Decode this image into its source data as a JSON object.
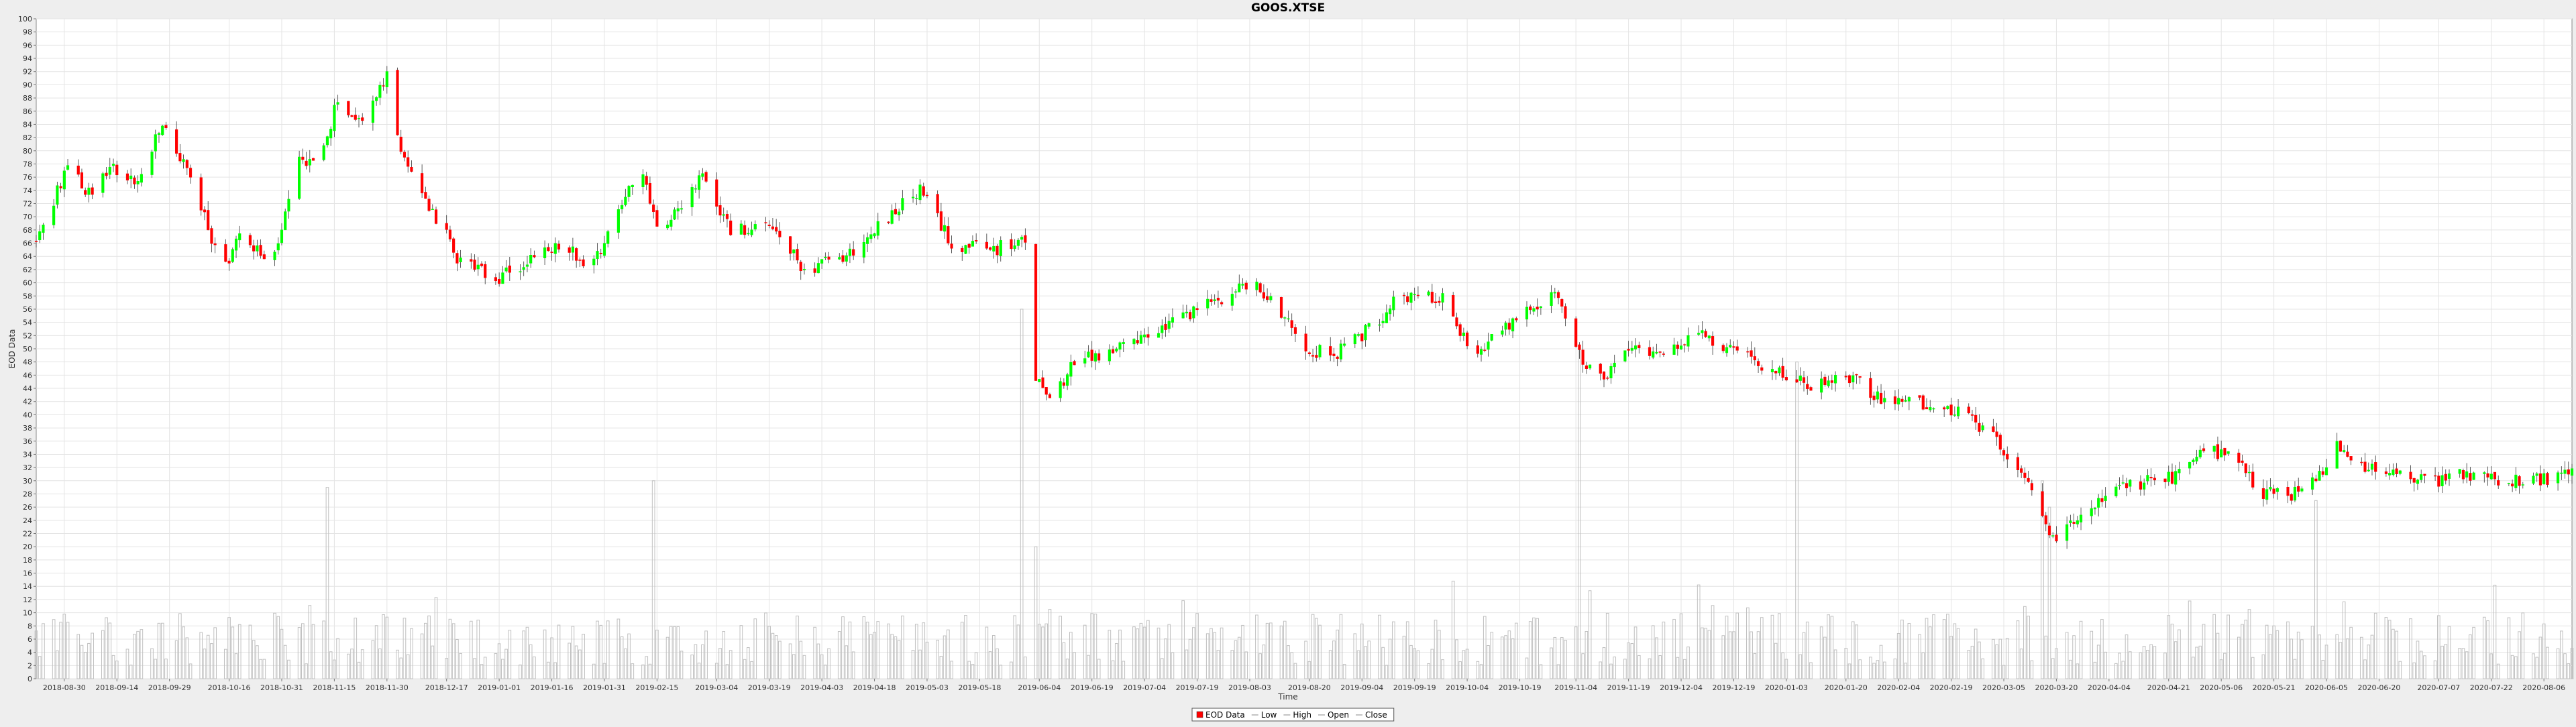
{
  "chart_data": {
    "type": "candlestick",
    "title": "GOOS.XTSE",
    "xlabel": "Time",
    "ylabel": "EOD Data",
    "ylim": [
      0,
      100
    ],
    "y_ticks": [
      0,
      2,
      4,
      6,
      8,
      10,
      12,
      14,
      16,
      18,
      20,
      22,
      24,
      26,
      28,
      30,
      32,
      34,
      36,
      38,
      40,
      42,
      44,
      46,
      48,
      50,
      52,
      54,
      56,
      58,
      60,
      62,
      64,
      66,
      68,
      70,
      72,
      74,
      76,
      78,
      80,
      82,
      84,
      86,
      88,
      90,
      92,
      94,
      96,
      98,
      100
    ],
    "x_range": [
      "2018-08-22",
      "2020-08-14"
    ],
    "x_ticks": [
      "2018-08-30",
      "2018-09-14",
      "2018-09-29",
      "2018-10-16",
      "2018-10-31",
      "2018-11-15",
      "2018-11-30",
      "2018-12-17",
      "2019-01-01",
      "2019-01-16",
      "2019-01-31",
      "2019-02-15",
      "2019-03-04",
      "2019-03-19",
      "2019-04-03",
      "2019-04-18",
      "2019-05-03",
      "2019-05-18",
      "2019-06-04",
      "2019-06-19",
      "2019-07-04",
      "2019-07-19",
      "2019-08-03",
      "2019-08-20",
      "2019-09-04",
      "2019-09-19",
      "2019-10-04",
      "2019-10-19",
      "2019-11-04",
      "2019-11-19",
      "2019-12-04",
      "2019-12-19",
      "2020-01-03",
      "2020-01-20",
      "2020-02-04",
      "2020-02-19",
      "2020-03-05",
      "2020-03-20",
      "2020-04-04",
      "2020-04-21",
      "2020-05-06",
      "2020-05-21",
      "2020-06-05",
      "2020-06-20",
      "2020-07-07",
      "2020-07-22",
      "2020-08-06"
    ],
    "price_anchors": [
      [
        "2018-08-22",
        66
      ],
      [
        "2018-09-01",
        79
      ],
      [
        "2018-09-05",
        73
      ],
      [
        "2018-09-12",
        78
      ],
      [
        "2018-09-20",
        75
      ],
      [
        "2018-09-27",
        84
      ],
      [
        "2018-10-05",
        76
      ],
      [
        "2018-10-14",
        62
      ],
      [
        "2018-10-20",
        68
      ],
      [
        "2018-10-28",
        62
      ],
      [
        "2018-11-05",
        78
      ],
      [
        "2018-11-12",
        80
      ],
      [
        "2018-11-16",
        88
      ],
      [
        "2018-11-22",
        84
      ],
      [
        "2018-11-30",
        91
      ],
      [
        "2018-12-05",
        78
      ],
      [
        "2018-12-12",
        72
      ],
      [
        "2018-12-20",
        64
      ],
      [
        "2018-12-31",
        60
      ],
      [
        "2019-01-05",
        62
      ],
      [
        "2019-01-20",
        66
      ],
      [
        "2019-01-27",
        62
      ],
      [
        "2019-02-03",
        70
      ],
      [
        "2019-02-10",
        78
      ],
      [
        "2019-02-15",
        68
      ],
      [
        "2019-02-28",
        76
      ],
      [
        "2019-03-08",
        68
      ],
      [
        "2019-03-20",
        68
      ],
      [
        "2019-03-29",
        62
      ],
      [
        "2019-04-10",
        64
      ],
      [
        "2019-04-22",
        70
      ],
      [
        "2019-05-01",
        74
      ],
      [
        "2019-05-10",
        66
      ],
      [
        "2019-05-20",
        65
      ],
      [
        "2019-05-30",
        66
      ],
      [
        "2019-06-01",
        47
      ],
      [
        "2019-06-08",
        43
      ],
      [
        "2019-06-14",
        48
      ],
      [
        "2019-06-28",
        50
      ],
      [
        "2019-07-06",
        52
      ],
      [
        "2019-07-19",
        56
      ],
      [
        "2019-08-03",
        60
      ],
      [
        "2019-08-10",
        57
      ],
      [
        "2019-08-20",
        50
      ],
      [
        "2019-08-27",
        49
      ],
      [
        "2019-09-04",
        52
      ],
      [
        "2019-09-15",
        58
      ],
      [
        "2019-09-27",
        58
      ],
      [
        "2019-10-02",
        52
      ],
      [
        "2019-10-08",
        50
      ],
      [
        "2019-10-22",
        56
      ],
      [
        "2019-10-30",
        58
      ],
      [
        "2019-11-04",
        50
      ],
      [
        "2019-11-10",
        45
      ],
      [
        "2019-11-20",
        50
      ],
      [
        "2019-12-02",
        50
      ],
      [
        "2019-12-10",
        52
      ],
      [
        "2019-12-16",
        50
      ],
      [
        "2019-12-31",
        47
      ],
      [
        "2020-01-10",
        44
      ],
      [
        "2020-01-22",
        46
      ],
      [
        "2020-01-30",
        42
      ],
      [
        "2020-02-10",
        42
      ],
      [
        "2020-02-22",
        40
      ],
      [
        "2020-03-03",
        36
      ],
      [
        "2020-03-13",
        28
      ],
      [
        "2020-03-18",
        21
      ],
      [
        "2020-03-26",
        24
      ],
      [
        "2020-04-04",
        28
      ],
      [
        "2020-04-15",
        30
      ],
      [
        "2020-04-26",
        31
      ],
      [
        "2020-05-01",
        35
      ],
      [
        "2020-05-10",
        33
      ],
      [
        "2020-05-18",
        28
      ],
      [
        "2020-05-28",
        28
      ],
      [
        "2020-06-02",
        30
      ],
      [
        "2020-06-08",
        35
      ],
      [
        "2020-06-15",
        32
      ],
      [
        "2020-06-25",
        31
      ],
      [
        "2020-07-05",
        30
      ],
      [
        "2020-07-15",
        31
      ],
      [
        "2020-07-28",
        30
      ],
      [
        "2020-08-05",
        30
      ],
      [
        "2020-08-14",
        31
      ]
    ],
    "volume_spikes": [
      [
        "2018-11-13",
        29
      ],
      [
        "2019-02-14",
        30
      ],
      [
        "2019-05-30",
        56
      ],
      [
        "2019-06-01",
        31
      ],
      [
        "2019-06-03",
        20
      ],
      [
        "2019-11-05",
        50
      ],
      [
        "2020-01-06",
        48
      ],
      [
        "2020-02-15",
        24
      ],
      [
        "2020-03-16",
        30
      ],
      [
        "2020-03-18",
        26
      ],
      [
        "2020-06-02",
        27
      ]
    ],
    "volume_typical_range": [
      2,
      10
    ],
    "colors": {
      "up": "#00ff00",
      "down": "#ff0000",
      "volume": "#c0c0c0",
      "background": "#ffffff",
      "grid": "#e4e4e4"
    },
    "grid": true,
    "legend_position": "bottom",
    "legend": [
      "EOD Data",
      "Low",
      "High",
      "Open",
      "Close"
    ]
  }
}
